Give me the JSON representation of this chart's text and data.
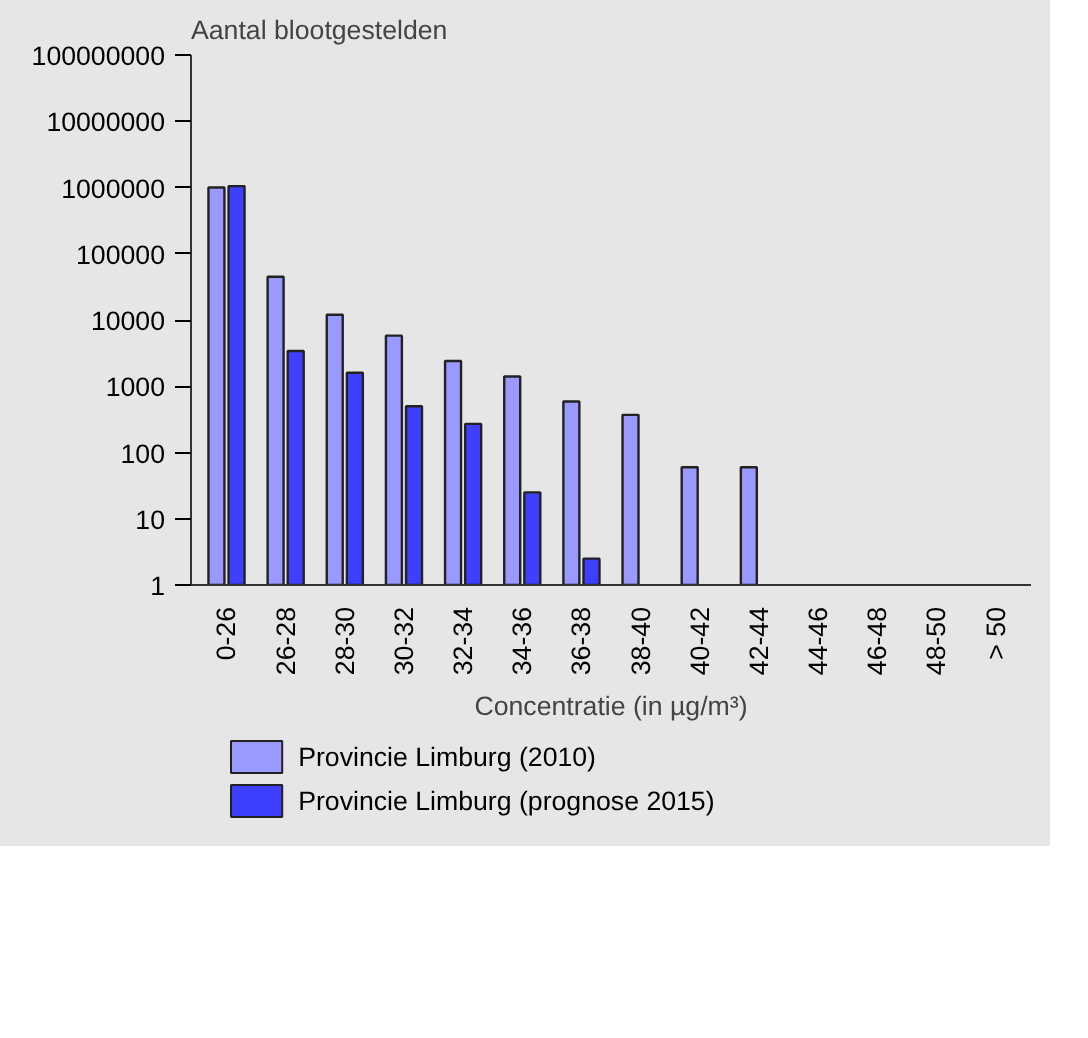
{
  "chart_data": {
    "type": "bar",
    "ylabel": "Aantal blootgestelden",
    "xlabel": "Concentratie (in µg/m³)",
    "categories": [
      "0-26",
      "26-28",
      "28-30",
      "30-32",
      "32-34",
      "34-36",
      "36-38",
      "38-40",
      "40-42",
      "42-44",
      "44-46",
      "46-48",
      "48-50",
      "> 50"
    ],
    "series": [
      {
        "name": "Provincie Limburg (2010)",
        "color": "#9999ff",
        "values": [
          1000000,
          45000,
          12000,
          5800,
          2400,
          1400,
          590,
          370,
          60,
          60,
          null,
          null,
          null,
          null
        ]
      },
      {
        "name": "Provincie Limburg (prognose 2015)",
        "color": "#3f3fff",
        "values": [
          1050000,
          3400,
          1600,
          500,
          270,
          25,
          2.5,
          null,
          null,
          null,
          null,
          null,
          null,
          null
        ]
      }
    ],
    "log": "y",
    "ylim": [
      1,
      100000000
    ],
    "yticks": [
      1,
      10,
      100,
      1000,
      10000,
      100000,
      1000000,
      10000000,
      100000000
    ],
    "grid": false,
    "legend": "bottom"
  }
}
